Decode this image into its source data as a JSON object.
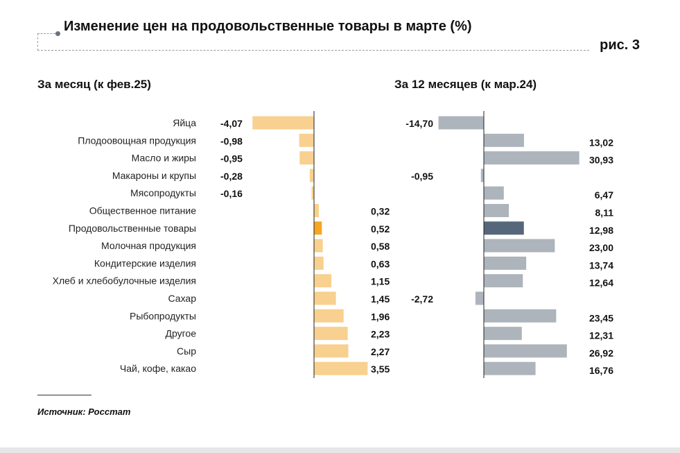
{
  "title": "Изменение цен на продовольственные товары в марте (%)",
  "figure_label": "рис. 3",
  "source": "Источник: Росстат",
  "colors": {
    "left_bar": "#f8d08f",
    "left_highlight": "#f5a623",
    "right_bar": "#adb4bb",
    "right_highlight": "#56677b"
  },
  "chart_data": [
    {
      "type": "bar",
      "orientation": "horizontal",
      "title": "За месяц (к фев.25)",
      "categories": [
        "Яйца",
        "Плодоовощная продукция",
        "Масло и жиры",
        "Макароны и крупы",
        "Мясопродукты",
        "Общественное питание",
        "Продовольственные товары",
        "Молочная продукция",
        "Кондитерские изделия",
        "Хлеб и хлебобулочные изделия",
        "Сахар",
        "Рыбопродукты",
        "Другое",
        "Сыр",
        "Чай, кофе, какао"
      ],
      "values": [
        -4.07,
        -0.98,
        -0.95,
        -0.28,
        -0.16,
        0.32,
        0.52,
        0.58,
        0.63,
        1.15,
        1.45,
        1.96,
        2.23,
        2.27,
        3.55
      ],
      "labels": [
        "-4,07",
        "-0,98",
        "-0,95",
        "-0,28",
        "-0,16",
        "0,32",
        "0,52",
        "0,58",
        "0,63",
        "1,15",
        "1,45",
        "1,96",
        "2,23",
        "2,27",
        "3,55"
      ],
      "highlight": "Продовольственные товары"
    },
    {
      "type": "bar",
      "orientation": "horizontal",
      "title": "За 12 месяцев (к мар.24)",
      "categories": [
        "Яйца",
        "Плодоовощная продукция",
        "Масло и жиры",
        "Макароны и крупы",
        "Мясопродукты",
        "Общественное питание",
        "Продовольственные товары",
        "Молочная продукция",
        "Кондитерские изделия",
        "Хлеб и хлебобулочные изделия",
        "Сахар",
        "Рыбопродукты",
        "Другое",
        "Сыр",
        "Чай, кофе, какао"
      ],
      "values": [
        -14.7,
        13.02,
        30.93,
        -0.95,
        6.47,
        8.11,
        12.98,
        23.0,
        13.74,
        12.64,
        -2.72,
        23.45,
        12.31,
        26.92,
        16.76
      ],
      "labels": [
        "-14,70",
        "13,02",
        "30,93",
        "-0,95",
        "6,47",
        "8,11",
        "12,98",
        "23,00",
        "13,74",
        "12,64",
        "-2,72",
        "23,45",
        "12,31",
        "26,92",
        "16,76"
      ],
      "highlight": "Продовольственные товары"
    }
  ]
}
